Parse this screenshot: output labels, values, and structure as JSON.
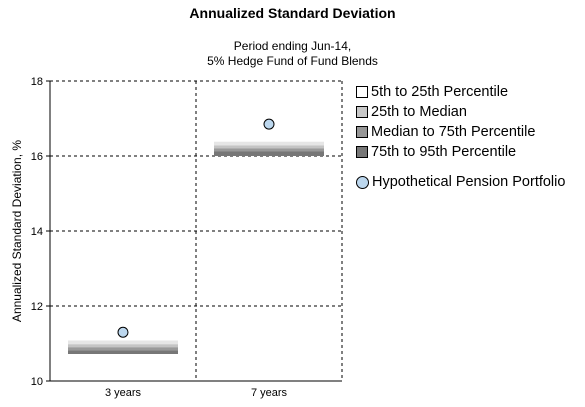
{
  "chart_data": {
    "type": "floating-bar",
    "title": "Annualized Standard Deviation",
    "subtitle_lines": [
      "Period ending Jun-14,",
      "5% Hedge Fund of Fund Blends"
    ],
    "ylabel": "Annualized Standard Deviation, %",
    "xlabel": "",
    "ylim": [
      10,
      18
    ],
    "yticks": [
      10,
      12,
      14,
      16,
      18
    ],
    "categories": [
      "3 years",
      "7 years"
    ],
    "grid": true,
    "legend_position": "right",
    "percentile_bands": [
      {
        "name": "5th to 25th Percentile",
        "color": "#e6e6e6",
        "ranges": [
          [
            10.98,
            11.08
          ],
          [
            16.28,
            16.38
          ]
        ]
      },
      {
        "name": "25th to Median",
        "color": "#c4c4c4",
        "ranges": [
          [
            10.9,
            10.98
          ],
          [
            16.2,
            16.28
          ]
        ]
      },
      {
        "name": "Median to 75th Percentile",
        "color": "#999999",
        "ranges": [
          [
            10.82,
            10.9
          ],
          [
            16.12,
            16.2
          ]
        ]
      },
      {
        "name": "75th to 95th Percentile",
        "color": "#777777",
        "ranges": [
          [
            10.72,
            10.82
          ],
          [
            16.0,
            16.12
          ]
        ]
      }
    ],
    "series": [
      {
        "name": "Hypothetical Pension Portfolio",
        "color": "#bcd7ee",
        "values": [
          11.3,
          16.85
        ]
      }
    ]
  }
}
